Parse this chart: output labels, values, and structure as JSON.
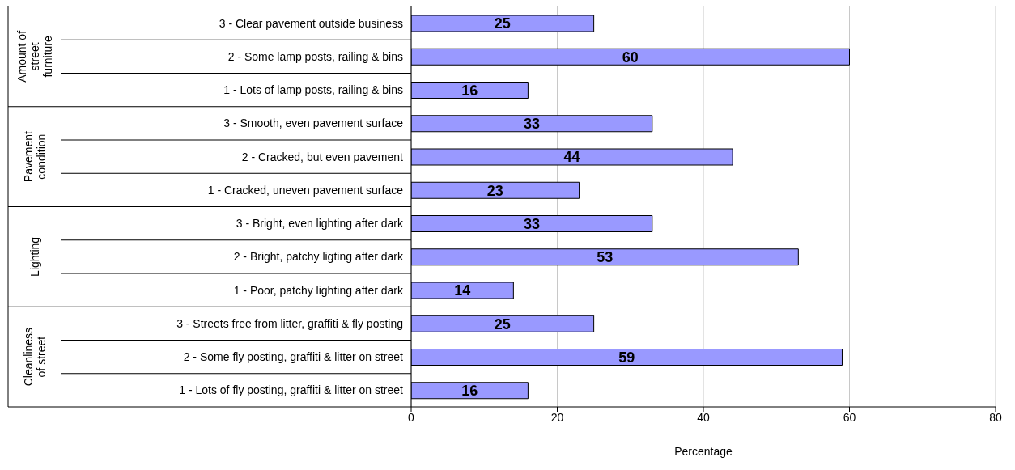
{
  "chart_data": {
    "type": "bar",
    "orientation": "horizontal",
    "xlabel": "Percentage",
    "categories": [
      "3 - Clear pavement outside business",
      "2 - Some lamp posts, railing & bins",
      "1 - Lots of lamp posts, railing & bins",
      "3 - Smooth, even pavement surface",
      "2 - Cracked, but even pavement",
      "1 - Cracked, uneven pavement surface",
      "3 - Bright, even lighting after dark",
      "2 - Bright, patchy ligting after dark",
      "1 - Poor, patchy lighting after dark",
      "3 - Streets free from litter, graffiti & fly posting",
      "2 - Some fly posting, graffiti & litter on street",
      "1 - Lots of fly posting, graffiti & litter on street"
    ],
    "values": [
      25,
      60,
      16,
      33,
      44,
      23,
      33,
      53,
      14,
      25,
      59,
      16
    ],
    "color": "#9999ff",
    "data_labels": true,
    "xlim": [
      0,
      80
    ],
    "xticks": [
      0,
      20,
      40,
      60,
      80
    ],
    "grid": "x",
    "annotations": [
      "Amount of street furniture",
      "Pavement condition",
      "Lighting",
      "Cleanliness of street"
    ]
  }
}
